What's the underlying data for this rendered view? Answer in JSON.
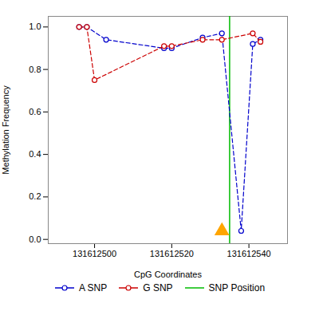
{
  "chart_data": {
    "type": "line",
    "xlabel": "CpG Coordinates",
    "ylabel": "Methylation Frequency",
    "series": [
      {
        "name": "A SNP",
        "color": "#0000CC",
        "line_style": "dashed",
        "marker": "circle",
        "x": [
          131612496,
          131612498,
          131612503,
          131612518,
          131612520,
          131612528,
          131612533,
          131612538,
          131612541,
          131612543
        ],
        "values": [
          1.0,
          1.0,
          0.94,
          0.9,
          0.9,
          0.95,
          0.97,
          0.04,
          0.92,
          0.94
        ]
      },
      {
        "name": "G SNP",
        "color": "#CC0000",
        "line_style": "dashed",
        "marker": "circle",
        "x": [
          131612496,
          131612498,
          131612500,
          131612518,
          131612520,
          131612528,
          131612533,
          131612541,
          131612543
        ],
        "values": [
          1.0,
          1.0,
          0.75,
          0.91,
          0.91,
          0.94,
          0.94,
          0.97,
          0.93
        ]
      }
    ],
    "snp_line": {
      "name": "SNP Position",
      "x": 131612535,
      "color": "#00BB00"
    },
    "snp_marker": {
      "x": 131612533,
      "y": 0.04,
      "color": "#FFA500",
      "marker": "triangle"
    },
    "xlim": [
      131612488,
      131612550
    ],
    "ylim": [
      -0.02,
      1.05
    ],
    "xticks": [
      131612500,
      131612520,
      131612540
    ],
    "yticks": [
      {
        "value": 0.0,
        "label": "0.0"
      },
      0.2,
      0.4,
      0.6,
      0.8,
      {
        "value": 1.0,
        "label": "1.0"
      }
    ],
    "legend": "bottom",
    "grid": false
  }
}
